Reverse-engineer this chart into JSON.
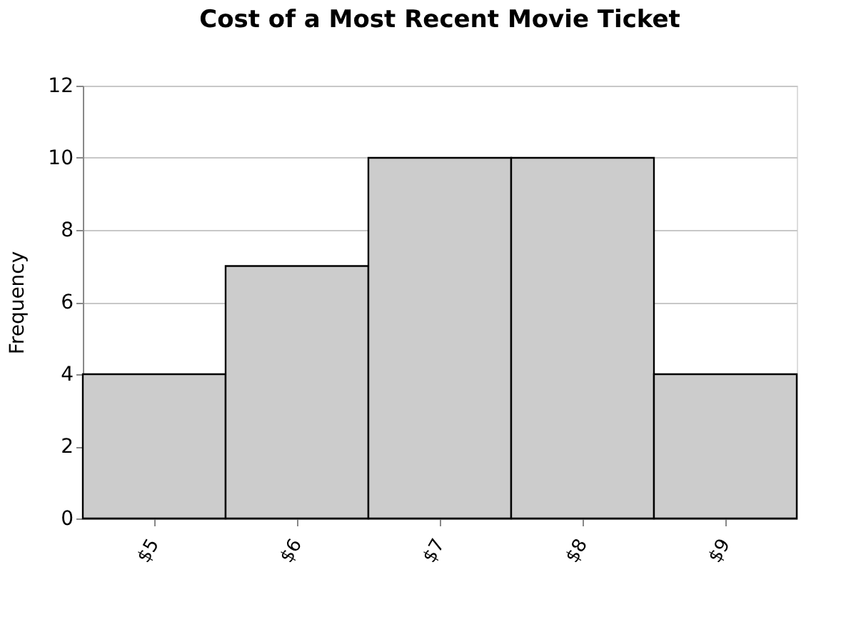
{
  "chart_data": {
    "type": "bar",
    "title": "Cost of a Most Recent Movie Ticket",
    "ylabel": "Frequency",
    "categories": [
      "$5",
      "$6",
      "$7",
      "$8",
      "$9"
    ],
    "values": [
      4,
      7,
      10,
      10,
      4
    ],
    "color": "#cccccc",
    "ylim": [
      0,
      12
    ],
    "yticks": [
      0,
      2,
      4,
      6,
      8,
      10,
      12
    ],
    "grid": "y"
  }
}
